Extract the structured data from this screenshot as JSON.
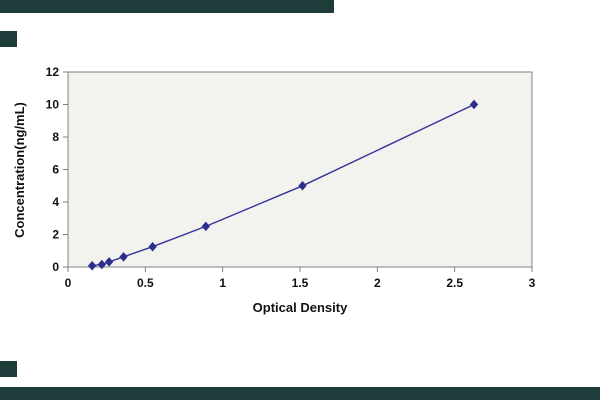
{
  "chart_data": {
    "type": "line",
    "title": "",
    "xlabel": "Optical Density",
    "ylabel": "Concentration(ng/mL)",
    "xlim": [
      0,
      3
    ],
    "ylim": [
      0,
      12
    ],
    "x": [
      0.156,
      0.219,
      0.266,
      0.359,
      0.547,
      0.891,
      1.516,
      2.625
    ],
    "y": [
      0.078,
      0.156,
      0.3125,
      0.625,
      1.25,
      2.5,
      5,
      10
    ],
    "x_ticks": [
      0,
      0.5,
      1,
      1.5,
      2,
      2.5,
      3
    ],
    "x_tick_labels": [
      "0",
      "0.5",
      "1",
      "1.5",
      "2",
      "2.5",
      "3"
    ],
    "y_ticks": [
      0,
      2,
      4,
      6,
      8,
      10,
      12
    ],
    "y_tick_labels": [
      "0",
      "2",
      "4",
      "6",
      "8",
      "10",
      "12"
    ],
    "line_color": "#333399",
    "marker": "diamond",
    "marker_color": "#2b2e8c",
    "grid": false,
    "legend": false,
    "plot_bg": "#f2f2ef",
    "frame_color": "#808080"
  },
  "decor": {
    "bar_color": "#1e3c3a"
  }
}
